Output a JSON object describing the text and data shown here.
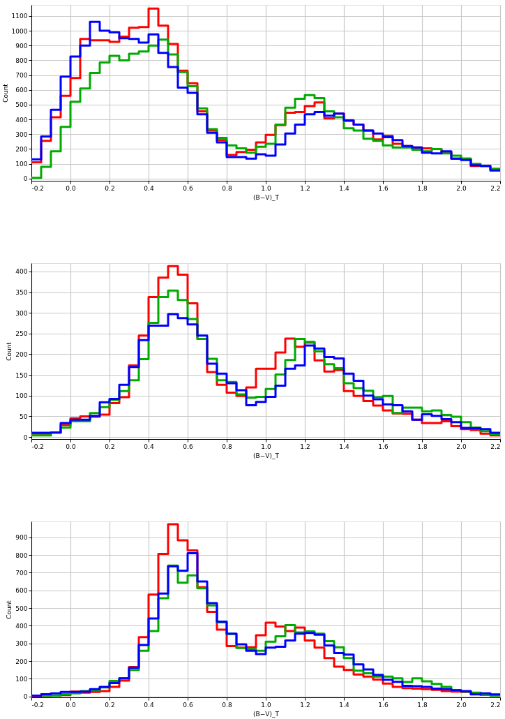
{
  "chart_data": [
    {
      "type": "histogram",
      "xlabel": "(B−V)_T",
      "ylabel": "Count",
      "grid": true,
      "line_style": "solid",
      "xlim": [
        -0.2,
        2.2
      ],
      "xticks": [
        -0.2,
        {
          "value": 0,
          "label": "0.0"
        },
        0.2,
        0.4,
        0.6,
        0.8,
        {
          "value": 1,
          "label": "1.0"
        },
        1.2,
        1.4,
        1.6,
        1.8,
        {
          "value": 2,
          "label": "2.0"
        },
        2.2
      ],
      "ylim": [
        -15,
        1175
      ],
      "yticks": [
        0,
        100,
        200,
        300,
        400,
        500,
        600,
        700,
        800,
        900,
        1000,
        1100
      ],
      "bins": [
        -0.2,
        -0.15,
        -0.1,
        -0.05,
        0.0,
        0.05,
        0.1,
        0.15,
        0.2,
        0.25,
        0.3,
        0.35,
        0.4,
        0.45,
        0.5,
        0.55,
        0.6,
        0.65,
        0.7,
        0.75,
        0.8,
        0.85,
        0.9,
        0.95,
        1.0,
        1.05,
        1.1,
        1.15,
        1.2,
        1.25,
        1.3,
        1.35,
        1.4,
        1.45,
        1.5,
        1.55,
        1.6,
        1.65,
        1.7,
        1.75,
        1.8,
        1.85,
        1.9,
        1.95,
        2.0,
        2.05,
        2.1,
        2.15,
        2.2
      ],
      "series": [
        {
          "color": "#ff0000",
          "values": [
            110,
            255,
            415,
            560,
            680,
            945,
            935,
            935,
            925,
            960,
            1020,
            1025,
            1150,
            1035,
            910,
            730,
            645,
            455,
            325,
            260,
            160,
            180,
            195,
            245,
            295,
            362,
            446,
            450,
            490,
            515,
            408,
            440,
            390,
            365,
            325,
            265,
            290,
            235,
            220,
            210,
            205,
            200,
            180,
            135,
            135,
            85,
            85,
            65
          ]
        },
        {
          "color": "#00aa00",
          "values": [
            5,
            80,
            185,
            350,
            520,
            610,
            715,
            785,
            830,
            800,
            845,
            860,
            900,
            940,
            840,
            720,
            625,
            475,
            335,
            275,
            225,
            205,
            175,
            215,
            235,
            365,
            480,
            540,
            565,
            545,
            455,
            415,
            340,
            325,
            270,
            255,
            225,
            210,
            210,
            195,
            185,
            200,
            170,
            155,
            135,
            100,
            85,
            65
          ]
        },
        {
          "color": "#0000ff",
          "values": [
            130,
            285,
            465,
            690,
            825,
            900,
            1060,
            1000,
            990,
            950,
            945,
            920,
            975,
            850,
            755,
            615,
            580,
            435,
            310,
            245,
            145,
            145,
            135,
            165,
            155,
            230,
            305,
            365,
            435,
            450,
            425,
            440,
            395,
            365,
            325,
            305,
            280,
            260,
            220,
            210,
            175,
            170,
            185,
            135,
            125,
            90,
            85,
            55
          ]
        }
      ]
    },
    {
      "type": "histogram",
      "xlabel": "(B−V)_T",
      "ylabel": "Count",
      "grid": true,
      "line_style": "solid",
      "xlim": [
        -0.2,
        2.2
      ],
      "xticks": [
        -0.2,
        {
          "value": 0,
          "label": "0.0"
        },
        0.2,
        0.4,
        0.6,
        0.8,
        {
          "value": 1,
          "label": "1.0"
        },
        1.2,
        1.4,
        1.6,
        1.8,
        {
          "value": 2,
          "label": "2.0"
        },
        2.2
      ],
      "ylim": [
        -5,
        420
      ],
      "yticks": [
        0,
        50,
        100,
        150,
        200,
        250,
        300,
        350,
        400
      ],
      "bins": [
        -0.2,
        -0.15,
        -0.1,
        -0.05,
        0.0,
        0.05,
        0.1,
        0.15,
        0.2,
        0.25,
        0.3,
        0.35,
        0.4,
        0.45,
        0.5,
        0.55,
        0.6,
        0.65,
        0.7,
        0.75,
        0.8,
        0.85,
        0.9,
        0.95,
        1.0,
        1.05,
        1.1,
        1.15,
        1.2,
        1.25,
        1.3,
        1.35,
        1.4,
        1.45,
        1.5,
        1.55,
        1.6,
        1.65,
        1.7,
        1.75,
        1.8,
        1.85,
        1.9,
        1.95,
        2.0,
        2.05,
        2.1,
        2.15,
        2.2
      ],
      "series": [
        {
          "color": "#ff0000",
          "values": [
            8,
            8,
            11,
            29,
            45,
            50,
            49,
            54,
            82,
            96,
            173,
            245,
            338,
            385,
            413,
            392,
            323,
            237,
            157,
            126,
            107,
            99,
            120,
            165,
            165,
            204,
            238,
            218,
            228,
            185,
            158,
            162,
            111,
            99,
            87,
            76,
            64,
            57,
            56,
            42,
            34,
            34,
            38,
            26,
            19,
            17,
            8,
            4
          ]
        },
        {
          "color": "#00aa00",
          "values": [
            4,
            4,
            10,
            23,
            38,
            38,
            58,
            72,
            90,
            111,
            137,
            188,
            276,
            338,
            354,
            331,
            285,
            237,
            189,
            137,
            133,
            103,
            95,
            97,
            116,
            151,
            186,
            237,
            230,
            207,
            176,
            166,
            130,
            118,
            112,
            96,
            99,
            58,
            71,
            71,
            62,
            64,
            53,
            49,
            36,
            23,
            14,
            7
          ]
        },
        {
          "color": "#0000ff",
          "values": [
            10,
            10,
            11,
            34,
            42,
            42,
            51,
            84,
            92,
            126,
            169,
            234,
            269,
            269,
            297,
            287,
            272,
            245,
            177,
            153,
            130,
            113,
            77,
            85,
            97,
            124,
            165,
            173,
            221,
            214,
            193,
            190,
            153,
            136,
            100,
            91,
            79,
            77,
            62,
            42,
            55,
            51,
            43,
            36,
            22,
            21,
            19,
            10
          ]
        }
      ]
    },
    {
      "type": "histogram",
      "xlabel": "(B−V)_T",
      "ylabel": "Count",
      "grid": true,
      "line_style": "solid",
      "xlim": [
        -0.2,
        2.2
      ],
      "xticks": [
        -0.2,
        {
          "value": 0,
          "label": "0.0"
        },
        0.2,
        0.4,
        0.6,
        0.8,
        {
          "value": 1,
          "label": "1.0"
        },
        1.2,
        1.4,
        1.6,
        1.8,
        {
          "value": 2,
          "label": "2.0"
        },
        2.2
      ],
      "ylim": [
        -5,
        990
      ],
      "yticks": [
        0,
        100,
        200,
        300,
        400,
        500,
        600,
        700,
        800,
        900
      ],
      "bins": [
        -0.2,
        -0.15,
        -0.1,
        -0.05,
        0.0,
        0.05,
        0.1,
        0.15,
        0.2,
        0.25,
        0.3,
        0.35,
        0.4,
        0.45,
        0.5,
        0.55,
        0.6,
        0.65,
        0.7,
        0.75,
        0.8,
        0.85,
        0.9,
        0.95,
        1.0,
        1.05,
        1.1,
        1.15,
        1.2,
        1.25,
        1.3,
        1.35,
        1.4,
        1.45,
        1.5,
        1.55,
        1.6,
        1.65,
        1.7,
        1.75,
        1.8,
        1.85,
        1.9,
        1.95,
        2.0,
        2.05,
        2.1,
        2.15,
        2.2
      ],
      "series": [
        {
          "color": "#ff0000",
          "values": [
            0,
            3,
            5,
            8,
            28,
            22,
            26,
            31,
            54,
            90,
            167,
            336,
            576,
            806,
            974,
            883,
            826,
            618,
            479,
            378,
            285,
            276,
            278,
            346,
            417,
            396,
            370,
            390,
            317,
            276,
            217,
            169,
            150,
            124,
            112,
            96,
            73,
            54,
            47,
            44,
            41,
            37,
            31,
            28,
            26,
            19,
            15,
            9
          ]
        },
        {
          "color": "#00aa00",
          "values": [
            5,
            5,
            5,
            13,
            18,
            31,
            35,
            51,
            88,
            103,
            150,
            259,
            370,
            556,
            740,
            644,
            685,
            612,
            515,
            419,
            353,
            274,
            268,
            259,
            310,
            340,
            404,
            362,
            368,
            355,
            313,
            278,
            217,
            146,
            131,
            112,
            112,
            103,
            82,
            103,
            86,
            71,
            54,
            35,
            28,
            22,
            9,
            5
          ]
        },
        {
          "color": "#0000ff",
          "values": [
            5,
            13,
            18,
            26,
            26,
            28,
            41,
            54,
            76,
            103,
            163,
            291,
            441,
            582,
            736,
            712,
            810,
            650,
            528,
            423,
            355,
            295,
            259,
            240,
            276,
            281,
            317,
            355,
            359,
            349,
            288,
            246,
            237,
            182,
            153,
            122,
            95,
            83,
            60,
            58,
            54,
            44,
            41,
            35,
            31,
            12,
            18,
            12
          ]
        }
      ]
    }
  ]
}
